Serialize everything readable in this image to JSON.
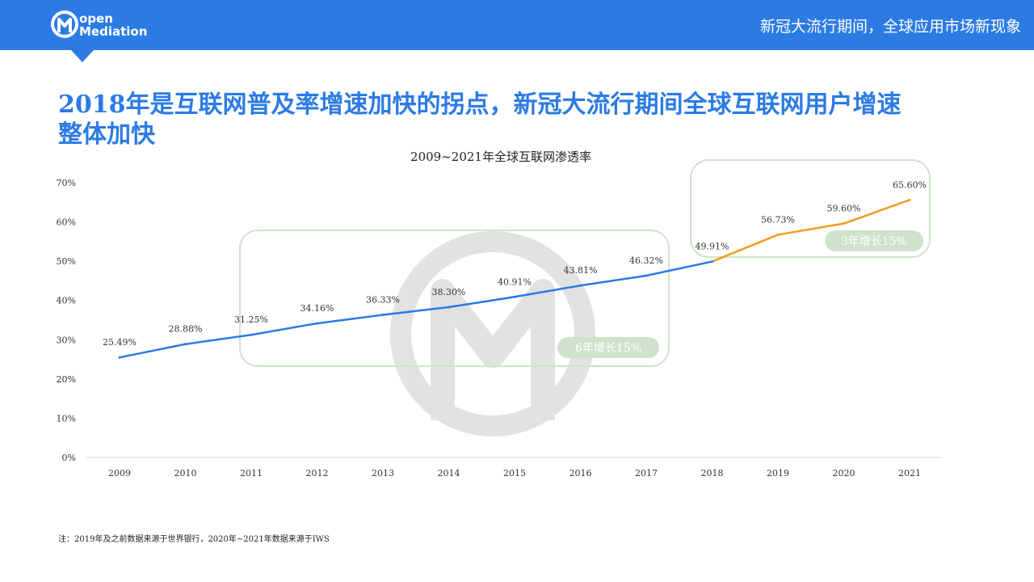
{
  "header": {
    "logo_line1": "open",
    "logo_line2": "Mediation",
    "title": "新冠大流行期间，全球应用市场新现象",
    "color": "#2c7be5"
  },
  "headline": "2018年是互联网普及率增速加快的拐点，新冠大流行期间全球互联网用户增速整体加快",
  "note": "注：2019年及之前数据来源于世界银行，2020年~2021年数据来源于IWS",
  "chart_data": {
    "type": "line",
    "title": "2009~2021年全球互联网渗透率",
    "categories": [
      "2009",
      "2010",
      "2011",
      "2012",
      "2013",
      "2014",
      "2015",
      "2016",
      "2017",
      "2018",
      "2019",
      "2020",
      "2021"
    ],
    "values": [
      25.49,
      28.88,
      31.25,
      34.16,
      36.33,
      38.3,
      40.91,
      43.81,
      46.32,
      49.91,
      56.73,
      59.6,
      65.6
    ],
    "data_labels": [
      "25.49%",
      "28.88%",
      "31.25%",
      "34.16%",
      "36.33%",
      "38.30%",
      "40.91%",
      "43.81%",
      "46.32%",
      "49.91%",
      "56.73%",
      "59.60%",
      "65.60%"
    ],
    "yticks": [
      "0%",
      "10%",
      "20%",
      "30%",
      "40%",
      "50%",
      "60%",
      "70%"
    ],
    "ylim": [
      0,
      70
    ],
    "series_colors": {
      "before_2018": "#2c7be5",
      "after_2018": "#f39c1f"
    },
    "annotations": [
      {
        "label": "6年增长15%",
        "from": "2011",
        "to": "2017"
      },
      {
        "label": "3年增长15%",
        "from": "2018",
        "to": "2021"
      }
    ],
    "annotation_color": "#cfe3cc",
    "grid": false
  }
}
